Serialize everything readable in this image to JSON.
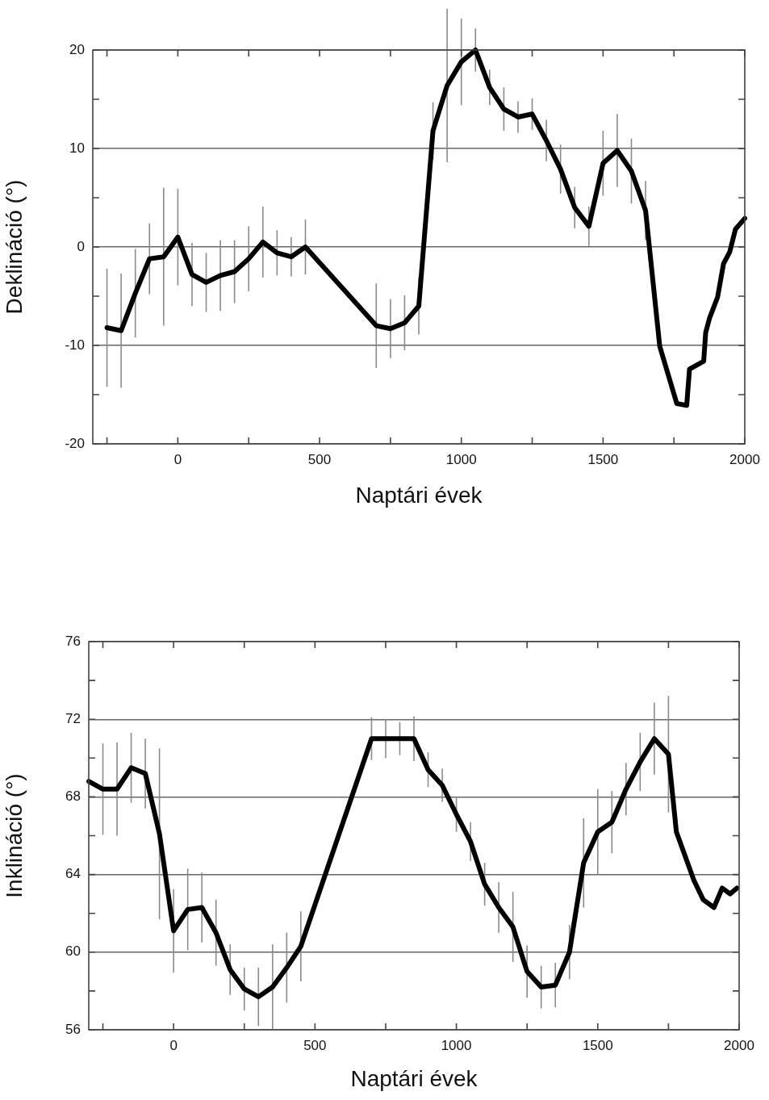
{
  "chart_data": [
    {
      "type": "line",
      "xlabel": "Naptári évek",
      "ylabel": "Deklináció (°)",
      "color": "#000000",
      "x": [
        -250,
        -200,
        -150,
        -100,
        -50,
        0,
        50,
        100,
        150,
        200,
        250,
        300,
        350,
        400,
        450,
        700,
        750,
        800,
        850,
        900,
        950,
        1000,
        1050,
        1100,
        1150,
        1200,
        1250,
        1300,
        1350,
        1400,
        1450,
        1500,
        1550,
        1600,
        1650,
        1700,
        1760,
        1795,
        1805,
        1855,
        1862,
        1876,
        1904,
        1925,
        1947,
        1967,
        2000
      ],
      "values": [
        -8.2,
        -8.5,
        -4.7,
        -1.2,
        -1.0,
        1.0,
        -2.8,
        -3.6,
        -2.9,
        -2.5,
        -1.2,
        0.5,
        -0.6,
        -1.0,
        0,
        -8.0,
        -8.3,
        -7.7,
        -6.0,
        11.8,
        16.4,
        18.8,
        20,
        16.2,
        14.0,
        13.2,
        13.5,
        10.8,
        7.9,
        4.0,
        2.1,
        8.5,
        9.8,
        7.7,
        3.7,
        -10.1,
        -15.9,
        -16.1,
        -12.4,
        -11.6,
        -8.7,
        -7.2,
        -5.1,
        -1.7,
        -0.5,
        1.8,
        2.9
      ],
      "errors": [
        6,
        5.8,
        4.5,
        3.6,
        7,
        4.9,
        3.2,
        3,
        3.6,
        3.2,
        3.3,
        3.6,
        2.3,
        2,
        2.8,
        4.3,
        3,
        2.8,
        2.9,
        2.9,
        7.8,
        4.4,
        2.2,
        1.8,
        2.2,
        1.6,
        1.6,
        2.1,
        2.5,
        2.1,
        2,
        3.3,
        3.7,
        3.3,
        3,
        null,
        null,
        null,
        null,
        null,
        null,
        null,
        null,
        null,
        null,
        null,
        null
      ],
      "xlim": [
        -300,
        2000
      ],
      "xticks": [
        {
          "value": -250,
          "label": null
        },
        0,
        {
          "value": 250,
          "label": null
        },
        500,
        {
          "value": 750,
          "label": null
        },
        1000,
        {
          "value": 1250,
          "label": null
        },
        1500,
        {
          "value": 1750,
          "label": null
        },
        2000
      ],
      "ylim": [
        -20,
        20
      ],
      "yticks": [
        -20,
        {
          "value": -15,
          "label": null
        },
        -10,
        {
          "value": -5,
          "label": null
        },
        0,
        {
          "value": 5,
          "label": null
        },
        10,
        {
          "value": 15,
          "label": null
        },
        20
      ],
      "grid": "y"
    },
    {
      "type": "line",
      "xlabel": "Naptári évek",
      "ylabel": "Inklináció (°)",
      "color": "#000000",
      "x": [
        -300,
        -250,
        -200,
        -150,
        -100,
        -50,
        0,
        50,
        100,
        150,
        200,
        250,
        300,
        350,
        400,
        450,
        700,
        750,
        800,
        850,
        900,
        950,
        1000,
        1050,
        1100,
        1150,
        1200,
        1250,
        1300,
        1350,
        1400,
        1450,
        1500,
        1550,
        1600,
        1650,
        1700,
        1750,
        1778,
        1840,
        1873,
        1911,
        1940,
        1968,
        1992
      ],
      "values": [
        68.8,
        68.4,
        68.4,
        69.5,
        69.2,
        66.1,
        61.1,
        62.2,
        62.3,
        61.0,
        59.1,
        58.1,
        57.7,
        58.2,
        59.2,
        60.3,
        71.0,
        71.0,
        71.0,
        71.0,
        69.4,
        68.6,
        67.1,
        65.7,
        63.5,
        62.3,
        61.3,
        59.0,
        58.2,
        58.3,
        60.0,
        64.6,
        66.2,
        66.7,
        68.4,
        69.8,
        71.0,
        70.2,
        66.2,
        63.7,
        62.7,
        62.3,
        63.3,
        63.0,
        63.3
      ],
      "errors": [
        null,
        2.35,
        2.4,
        1.8,
        1.8,
        4.4,
        2.15,
        2.1,
        1.8,
        1.7,
        1.3,
        1.1,
        1.5,
        2.2,
        1.8,
        1.8,
        1.1,
        1.0,
        0.85,
        1.15,
        0.9,
        0.85,
        0.9,
        1.0,
        1.1,
        1.3,
        1.8,
        1.35,
        1.1,
        1.15,
        1.4,
        2.3,
        2.2,
        1.6,
        1.35,
        1.5,
        1.85,
        3.0,
        null,
        null,
        null,
        null,
        null,
        null,
        null
      ],
      "xlim": [
        -300,
        2000
      ],
      "xticks": [
        {
          "value": -250,
          "label": null
        },
        0,
        {
          "value": 250,
          "label": null
        },
        500,
        {
          "value": 750,
          "label": null
        },
        1000,
        {
          "value": 1250,
          "label": null
        },
        1500,
        {
          "value": 1750,
          "label": null
        },
        2000
      ],
      "ylim": [
        56,
        76
      ],
      "yticks": [
        56,
        {
          "value": 58,
          "label": null
        },
        60,
        {
          "value": 62,
          "label": null
        },
        64,
        {
          "value": 66,
          "label": null
        },
        68,
        {
          "value": 70,
          "label": null
        },
        72,
        {
          "value": 74,
          "label": null
        },
        76
      ],
      "grid": "y"
    }
  ]
}
